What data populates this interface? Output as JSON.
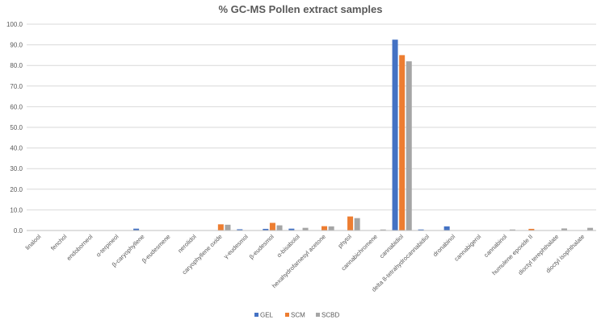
{
  "chart_data": {
    "type": "bar",
    "title": "% GC-MS Pollen extract samples",
    "xlabel": "",
    "ylabel": "",
    "ylim": [
      0,
      100
    ],
    "yticks": [
      "100.0",
      "90.0",
      "80.0",
      "70.0",
      "60.0",
      "50.0",
      "40.0",
      "30.0",
      "20.0",
      "10.0",
      "0.0"
    ],
    "grid": true,
    "legend_position": "bottom",
    "categories": [
      "linalool",
      "fenchol",
      "endoborneol",
      "α-terpineol",
      "β-caryophyllene",
      "β-eudesmene",
      "nerolidol",
      "caryophyllene oxide",
      "γ-eudesmol",
      "β-eudesmol",
      "α-bisabolol",
      "hexahydrofarnesyl acetone",
      "phytol",
      "cannabichromene",
      "cannabidiol",
      "delta 8-tetrahydrocannabidiol",
      "dronabinol",
      "cannabigerol",
      "cannabinol",
      "humulene epoxide II",
      "dioctyl terephthalate",
      "dioctyl isophthalate"
    ],
    "series": [
      {
        "name": "GEL",
        "color": "#4472C4",
        "values": [
          0,
          0,
          0,
          0,
          0.9,
          0,
          0,
          0,
          0.6,
          0.8,
          0.9,
          0,
          0,
          0,
          92.5,
          0.5,
          2.0,
          0,
          0,
          0,
          0,
          0
        ]
      },
      {
        "name": "SCM",
        "color": "#ED7D31",
        "values": [
          0,
          0,
          0,
          0,
          0,
          0,
          0,
          3.0,
          0,
          3.7,
          0,
          2.1,
          6.8,
          0,
          85.0,
          0,
          0,
          0,
          0,
          0.8,
          0,
          0
        ]
      },
      {
        "name": "SCBD",
        "color": "#A5A5A5",
        "values": [
          0,
          0,
          0,
          0,
          0,
          0,
          0,
          2.8,
          0,
          2.5,
          1.3,
          2.0,
          6.0,
          0.5,
          82.0,
          0,
          0,
          0,
          0.5,
          0,
          1.0,
          1.3
        ]
      }
    ]
  }
}
